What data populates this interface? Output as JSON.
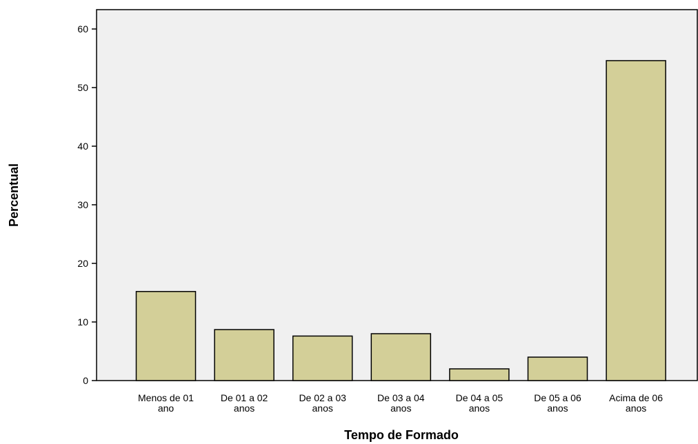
{
  "chart_data": {
    "type": "bar",
    "x_label": "Tempo de Formado",
    "y_label": "Percentual",
    "categories": [
      [
        "Menos de 01",
        "ano"
      ],
      [
        "De 01 a 02",
        "anos"
      ],
      [
        "De 02 a 03",
        "anos"
      ],
      [
        "De 03 a 04",
        "anos"
      ],
      [
        "De 04 a 05",
        "anos"
      ],
      [
        "De 05 a 06",
        "anos"
      ],
      [
        "Acima de 06",
        "anos"
      ]
    ],
    "values": [
      15.2,
      8.7,
      7.6,
      8.0,
      2.0,
      4.0,
      54.6
    ],
    "color": "#d3cf98",
    "ylim": [
      0,
      63.3
    ],
    "yticks": [
      0,
      10,
      20,
      30,
      40,
      50,
      60
    ],
    "grid": false
  }
}
